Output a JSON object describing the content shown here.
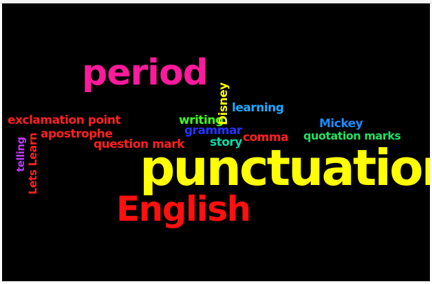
{
  "words": {
    "period": {
      "text": "period",
      "color": "#ff1a9c"
    },
    "exclamation_point": {
      "text": "exclamation point",
      "color": "#ff2020"
    },
    "apostrophe": {
      "text": "apostrophe",
      "color": "#ff2020"
    },
    "question_mark": {
      "text": "question mark",
      "color": "#ff2020"
    },
    "telling": {
      "text": "telling",
      "color": "#c03aff"
    },
    "lets_learn": {
      "text": "Lets Learn",
      "color": "#ff2020"
    },
    "writing": {
      "text": "writing",
      "color": "#40ff20"
    },
    "disney": {
      "text": "Disney",
      "color": "#ffff00"
    },
    "learning": {
      "text": "learning",
      "color": "#22a8ff"
    },
    "grammar": {
      "text": "grammar",
      "color": "#2233ff"
    },
    "story": {
      "text": "story",
      "color": "#00ddaa"
    },
    "comma": {
      "text": "comma",
      "color": "#ff2020"
    },
    "mickey": {
      "text": "Mickey",
      "color": "#1a8cff"
    },
    "quotation_marks": {
      "text": "quotation marks",
      "color": "#20e060"
    },
    "punctuation": {
      "text": "punctuation",
      "color": "#ffff00"
    },
    "english": {
      "text": "English",
      "color": "#ff1010"
    }
  }
}
